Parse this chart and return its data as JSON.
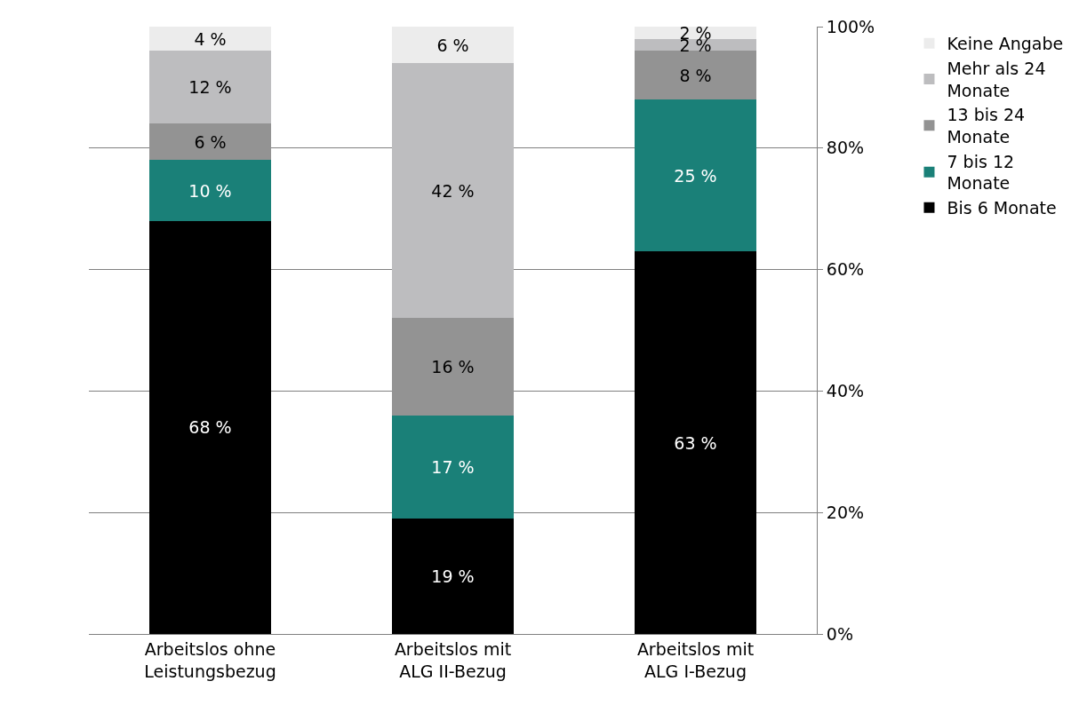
{
  "chart_data": {
    "type": "bar",
    "stacked": true,
    "categories": [
      "Arbeitslos ohne Leistungsbezug",
      "Arbeitslos mit ALG II-Bezug",
      "Arbeitslos mit ALG I-Bezug"
    ],
    "series": [
      {
        "name": "Bis 6 Monate",
        "color": "#000000",
        "values": [
          68,
          19,
          63
        ],
        "value_labels": [
          "68 %",
          "19 %",
          "63 %"
        ]
      },
      {
        "name": "7 bis 12 Monate",
        "color": "#1a8078",
        "values": [
          10,
          17,
          25
        ],
        "value_labels": [
          "10 %",
          "17 %",
          "25 %"
        ]
      },
      {
        "name": "13 bis 24 Monate",
        "color": "#939393",
        "values": [
          6,
          16,
          8
        ],
        "value_labels": [
          "6 %",
          "16 %",
          "8 %"
        ]
      },
      {
        "name": "Mehr als 24 Monate",
        "color": "#bdbdbf",
        "values": [
          12,
          42,
          2
        ],
        "value_labels": [
          "12 %",
          "42 %",
          "2 %"
        ]
      },
      {
        "name": "Keine Angabe",
        "color": "#ececec",
        "values": [
          4,
          6,
          2
        ],
        "value_labels": [
          "4 %",
          "6 %",
          "2 %"
        ]
      }
    ],
    "ylim": [
      0,
      100
    ],
    "yticks": [
      {
        "value": 0,
        "label": "0%"
      },
      {
        "value": 20,
        "label": "20%"
      },
      {
        "value": 40,
        "label": "40%"
      },
      {
        "value": 60,
        "label": "60%"
      },
      {
        "value": 80,
        "label": "80%"
      },
      {
        "value": 100,
        "label": "100%"
      }
    ],
    "grid": "y",
    "legend": "right"
  }
}
